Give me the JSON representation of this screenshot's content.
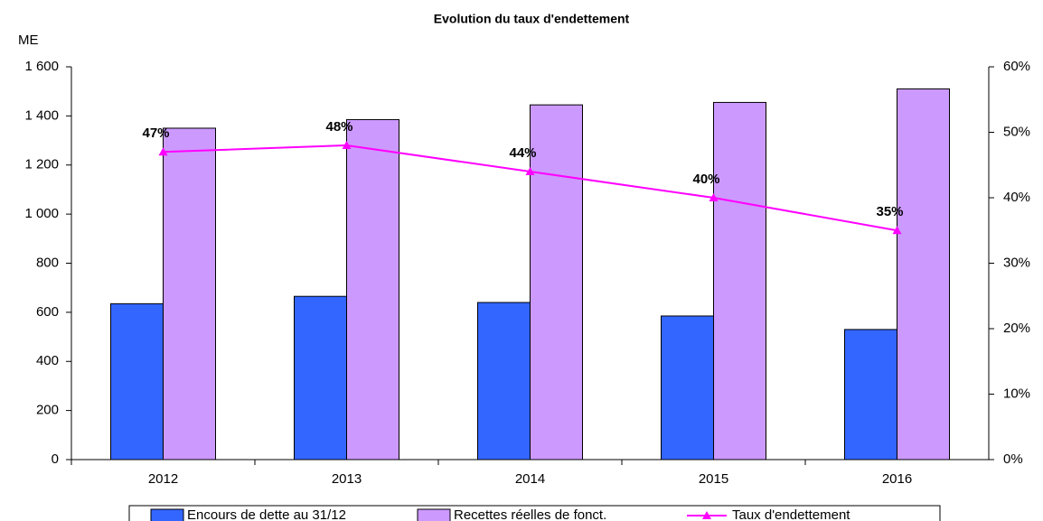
{
  "chart_data": {
    "type": "bar",
    "title": "Evolution du taux d'endettement",
    "y_label": "ME",
    "categories": [
      "2012",
      "2013",
      "2014",
      "2015",
      "2016"
    ],
    "series": [
      {
        "name": "Encours de dette au 31/12",
        "color": "#3366ff",
        "values": [
          635,
          665,
          640,
          585,
          530
        ]
      },
      {
        "name": "Recettes réelles de fonct.",
        "color": "#cc99ff",
        "values": [
          1350,
          1385,
          1445,
          1455,
          1510
        ]
      },
      {
        "name": "Taux d'endettement",
        "type": "line",
        "axis": "y2",
        "color": "#ff00ff",
        "values": [
          47,
          48,
          44,
          40,
          35
        ],
        "value_labels": [
          "47%",
          "48%",
          "44%",
          "40%",
          "35%"
        ]
      }
    ],
    "ylim": [
      0,
      1600
    ],
    "yticks": [
      0,
      200,
      400,
      600,
      800,
      {
        "value": 1000,
        "label": "1 000"
      },
      {
        "value": 1200,
        "label": "1 200"
      },
      {
        "value": 1400,
        "label": "1 400"
      },
      {
        "value": 1600,
        "label": "1 600"
      }
    ],
    "y2lim": [
      0,
      60
    ],
    "y2ticks": [
      {
        "value": 0,
        "label": "0%"
      },
      {
        "value": 10,
        "label": "10%"
      },
      {
        "value": 20,
        "label": "20%"
      },
      {
        "value": 30,
        "label": "30%"
      },
      {
        "value": 40,
        "label": "40%"
      },
      {
        "value": 50,
        "label": "50%"
      },
      {
        "value": 60,
        "label": "60%"
      }
    ],
    "legend": "bottom"
  }
}
